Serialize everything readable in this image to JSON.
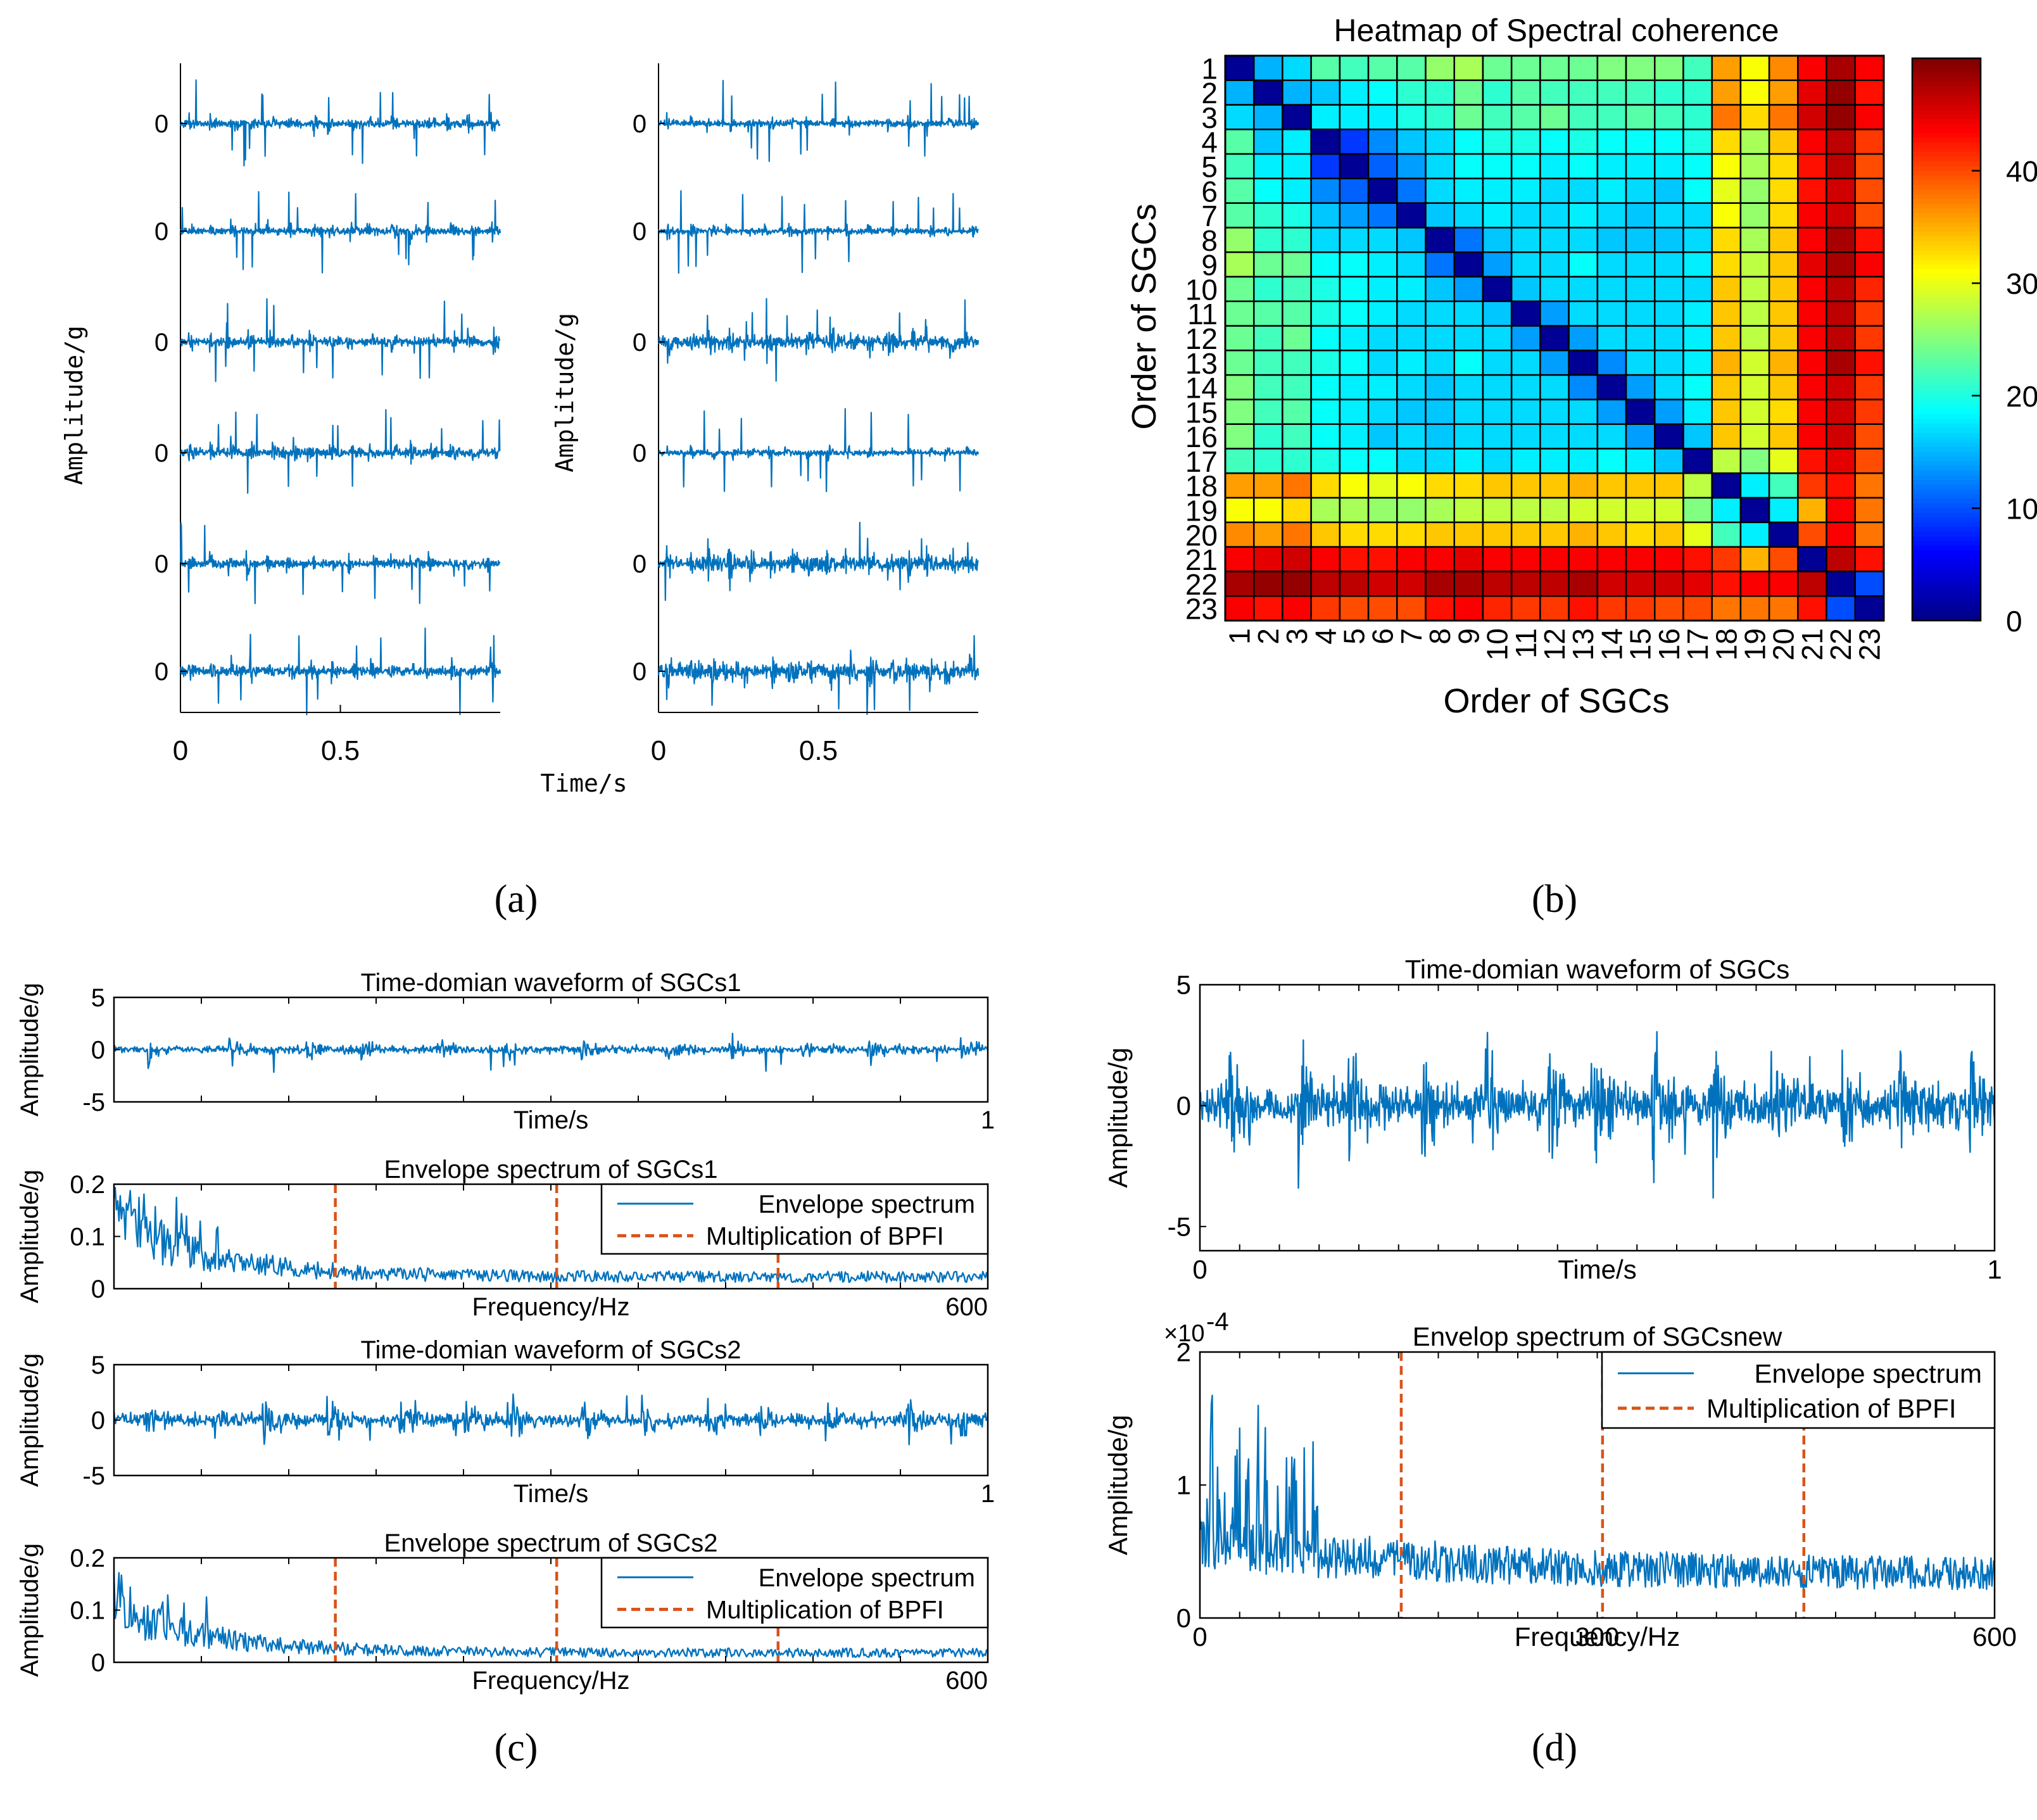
{
  "figure": {
    "panel_labels": [
      "(a)",
      "(b)",
      "(c)",
      "(d)"
    ],
    "colors": {
      "signal": "#0072BD",
      "bpf_line": "#D95319",
      "axis": "#000000",
      "background": "#ffffff"
    }
  },
  "chart_data": [
    {
      "id": "a",
      "type": "line",
      "description_label": "(a)",
      "ylabel": "Amplitude/g",
      "xlabel": "Time/s",
      "columns": [
        {
          "x_ticks": [
            "0",
            "0.5"
          ],
          "xlim": [
            0,
            1
          ],
          "rows": [
            {
              "tick": "0",
              "amplitude": 0.45,
              "impulses": 0.9
            },
            {
              "tick": "0",
              "amplitude": 0.45,
              "impulses": 0.9
            },
            {
              "tick": "0",
              "amplitude": 0.5,
              "impulses": 0.8
            },
            {
              "tick": "0",
              "amplitude": 0.55,
              "impulses": 0.8
            },
            {
              "tick": "0",
              "amplitude": 0.5,
              "impulses": 0.7
            },
            {
              "tick": "0",
              "amplitude": 0.55,
              "impulses": 0.75
            }
          ]
        },
        {
          "x_ticks": [
            "0",
            "0.5"
          ],
          "xlim": [
            0,
            1
          ],
          "rows": [
            {
              "tick": "0",
              "amplitude": 0.35,
              "impulses": 0.95
            },
            {
              "tick": "0",
              "amplitude": 0.35,
              "impulses": 0.95
            },
            {
              "tick": "0",
              "amplitude": 0.75,
              "impulses": 0.4
            },
            {
              "tick": "0",
              "amplitude": 0.3,
              "impulses": 0.9
            },
            {
              "tick": "0",
              "amplitude": 0.85,
              "impulses": 0.3
            },
            {
              "tick": "0",
              "amplitude": 0.9,
              "impulses": 0.3
            }
          ]
        }
      ]
    },
    {
      "id": "b",
      "type": "heatmap",
      "description_label": "(b)",
      "title": "Heatmap of Spectral coherence",
      "xlabel": "Order of SGCs",
      "ylabel": "Order of SGCs",
      "categories": [
        "1",
        "2",
        "3",
        "4",
        "5",
        "6",
        "7",
        "8",
        "9",
        "10",
        "11",
        "12",
        "13",
        "14",
        "15",
        "16",
        "17",
        "18",
        "19",
        "20",
        "21",
        "22",
        "23"
      ],
      "colorbar_ticks": [
        "0",
        "10",
        "20",
        "30",
        "40"
      ],
      "clim": [
        0,
        50
      ],
      "values": [
        [
          1,
          15,
          17,
          23,
          22,
          23,
          23,
          26,
          27,
          24,
          24,
          24,
          24,
          25,
          25,
          25,
          22,
          36,
          31,
          37,
          44,
          48,
          44
        ],
        [
          15,
          1,
          15,
          16,
          18,
          19,
          21,
          21,
          24,
          21,
          23,
          22,
          22,
          22,
          22,
          21,
          21,
          36,
          31,
          36,
          45,
          49,
          43
        ],
        [
          17,
          15,
          1,
          18,
          18,
          18,
          20,
          21,
          24,
          22,
          23,
          24,
          22,
          22,
          23,
          22,
          21,
          38,
          33,
          38,
          46,
          49,
          44
        ],
        [
          23,
          16,
          18,
          1,
          9,
          13,
          16,
          17,
          19,
          20,
          20,
          19,
          20,
          19,
          19,
          19,
          20,
          33,
          27,
          34,
          44,
          47,
          41
        ],
        [
          22,
          18,
          18,
          9,
          1,
          11,
          14,
          17,
          19,
          19,
          19,
          18,
          19,
          18,
          18,
          18,
          19,
          31,
          27,
          33,
          43,
          47,
          40
        ],
        [
          23,
          19,
          18,
          13,
          11,
          1,
          12,
          17,
          18,
          18,
          18,
          17,
          17,
          18,
          17,
          16,
          19,
          30,
          26,
          33,
          43,
          46,
          40
        ],
        [
          23,
          21,
          20,
          16,
          14,
          12,
          1,
          16,
          17,
          18,
          17,
          17,
          18,
          17,
          16,
          17,
          17,
          31,
          26,
          33,
          44,
          46,
          40
        ],
        [
          26,
          21,
          21,
          17,
          17,
          17,
          16,
          1,
          12,
          16,
          17,
          17,
          17,
          16,
          16,
          16,
          17,
          33,
          27,
          34,
          44,
          48,
          43
        ],
        [
          27,
          24,
          24,
          19,
          19,
          18,
          17,
          12,
          1,
          14,
          17,
          17,
          19,
          17,
          17,
          17,
          18,
          33,
          28,
          34,
          45,
          48,
          44
        ],
        [
          24,
          21,
          22,
          20,
          19,
          18,
          18,
          16,
          14,
          1,
          16,
          17,
          17,
          17,
          17,
          17,
          17,
          34,
          28,
          34,
          44,
          47,
          42
        ],
        [
          24,
          23,
          23,
          20,
          19,
          18,
          17,
          17,
          17,
          16,
          1,
          14,
          17,
          17,
          17,
          17,
          18,
          34,
          28,
          34,
          44,
          47,
          41
        ],
        [
          24,
          22,
          24,
          19,
          18,
          17,
          17,
          17,
          17,
          17,
          14,
          1,
          14,
          17,
          17,
          17,
          18,
          34,
          28,
          34,
          44,
          47,
          41
        ],
        [
          24,
          22,
          22,
          20,
          19,
          17,
          18,
          17,
          19,
          17,
          17,
          14,
          1,
          13,
          17,
          17,
          18,
          35,
          29,
          35,
          44,
          48,
          43
        ],
        [
          25,
          22,
          22,
          19,
          18,
          18,
          17,
          16,
          17,
          17,
          17,
          17,
          13,
          1,
          14,
          17,
          19,
          34,
          29,
          34,
          44,
          46,
          41
        ],
        [
          25,
          22,
          23,
          19,
          18,
          17,
          16,
          16,
          17,
          17,
          17,
          17,
          17,
          14,
          1,
          14,
          18,
          34,
          29,
          33,
          44,
          46,
          41
        ],
        [
          25,
          21,
          22,
          19,
          18,
          16,
          17,
          16,
          17,
          17,
          17,
          17,
          17,
          17,
          14,
          1,
          16,
          34,
          29,
          34,
          44,
          46,
          40
        ],
        [
          22,
          21,
          21,
          20,
          19,
          19,
          17,
          17,
          18,
          17,
          18,
          18,
          18,
          19,
          18,
          16,
          1,
          28,
          25,
          30,
          43,
          45,
          40
        ],
        [
          36,
          36,
          38,
          33,
          31,
          30,
          31,
          33,
          33,
          34,
          34,
          34,
          35,
          34,
          34,
          34,
          28,
          1,
          18,
          22,
          41,
          43,
          38
        ],
        [
          31,
          31,
          33,
          27,
          27,
          26,
          26,
          27,
          28,
          28,
          28,
          28,
          29,
          29,
          29,
          29,
          25,
          18,
          1,
          18,
          35,
          44,
          38
        ],
        [
          37,
          36,
          38,
          34,
          33,
          33,
          33,
          34,
          34,
          34,
          34,
          34,
          35,
          34,
          33,
          34,
          30,
          22,
          18,
          1,
          40,
          44,
          38
        ],
        [
          44,
          45,
          46,
          44,
          43,
          43,
          44,
          44,
          45,
          44,
          44,
          44,
          44,
          44,
          44,
          44,
          43,
          41,
          35,
          40,
          1,
          47,
          43
        ],
        [
          48,
          49,
          49,
          47,
          47,
          46,
          46,
          48,
          48,
          47,
          47,
          47,
          48,
          46,
          46,
          46,
          45,
          43,
          44,
          44,
          47,
          1,
          10
        ],
        [
          44,
          43,
          44,
          41,
          40,
          40,
          40,
          43,
          44,
          42,
          41,
          41,
          43,
          41,
          41,
          40,
          40,
          38,
          38,
          38,
          43,
          10,
          1
        ]
      ]
    },
    {
      "id": "c1",
      "type": "line",
      "title": "Time-domian waveform of SGCs1",
      "xlabel": "Time/s",
      "ylabel": "Amplitude/g",
      "x_ticks": [
        "1"
      ],
      "y_ticks": [
        "5",
        "0",
        "-5"
      ],
      "xlim": [
        0,
        1
      ],
      "ylim": [
        -5,
        5
      ],
      "amplitude": 0.9,
      "bursts": 12
    },
    {
      "id": "c2",
      "type": "line",
      "title": "Envelope spectrum of SGCs1",
      "xlabel": "Frequency/Hz",
      "ylabel": "Amplitude/g",
      "x_ticks": [
        "600"
      ],
      "y_ticks": [
        "0.2",
        "0.1",
        "0"
      ],
      "xlim": [
        0,
        600
      ],
      "ylim": [
        0,
        0.2
      ],
      "bpf_lines": [
        152,
        304,
        456
      ],
      "peak": 0.2,
      "legend": [
        "Envelope spectrum",
        "Multiplication of BPFI"
      ]
    },
    {
      "id": "c3",
      "type": "line",
      "title": "Time-domian waveform of SGCs2",
      "xlabel": "Time/s",
      "ylabel": "Amplitude/g",
      "x_ticks": [
        "1"
      ],
      "y_ticks": [
        "5",
        "0",
        "-5"
      ],
      "xlim": [
        0,
        1
      ],
      "ylim": [
        -5,
        5
      ],
      "amplitude": 1.6,
      "bursts": 14
    },
    {
      "id": "c4",
      "type": "line",
      "title": "Envelope spectrum of SGCs2",
      "xlabel": "Frequency/Hz",
      "ylabel": "Amplitude/g",
      "x_ticks": [
        "600"
      ],
      "y_ticks": [
        "0.2",
        "0.1",
        "0"
      ],
      "xlim": [
        0,
        600
      ],
      "ylim": [
        0,
        0.2
      ],
      "bpf_lines": [
        152,
        304,
        456
      ],
      "peak": 0.16,
      "legend": [
        "Envelope spectrum",
        "Multiplication of BPFI"
      ]
    },
    {
      "id": "d1",
      "type": "line",
      "title": "Time-domian waveform of SGCs",
      "xlabel": "Time/s",
      "ylabel": "Amplitude/g",
      "x_ticks": [
        "0",
        "1"
      ],
      "y_ticks": [
        "5",
        "0",
        "-5"
      ],
      "xlim": [
        0,
        1
      ],
      "ylim": [
        -6,
        5
      ],
      "amplitude": 2.2,
      "bursts": 13
    },
    {
      "id": "d2",
      "type": "line",
      "title": "Envelop spectrum of SGCsnew",
      "xlabel": "Frequency/Hz",
      "ylabel": "Amplitude/g",
      "x_ticks": [
        "0",
        "300",
        "600"
      ],
      "y_ticks": [
        "2",
        "1",
        "0"
      ],
      "y_exponent_base": "×10",
      "y_exponent_power": "-4",
      "xlim": [
        0,
        600
      ],
      "ylim": [
        0,
        2
      ],
      "bpf_lines": [
        152,
        304,
        456
      ],
      "peak": 1.7,
      "legend": [
        "Envelope spectrum",
        "Multiplication of BPFI"
      ]
    }
  ]
}
